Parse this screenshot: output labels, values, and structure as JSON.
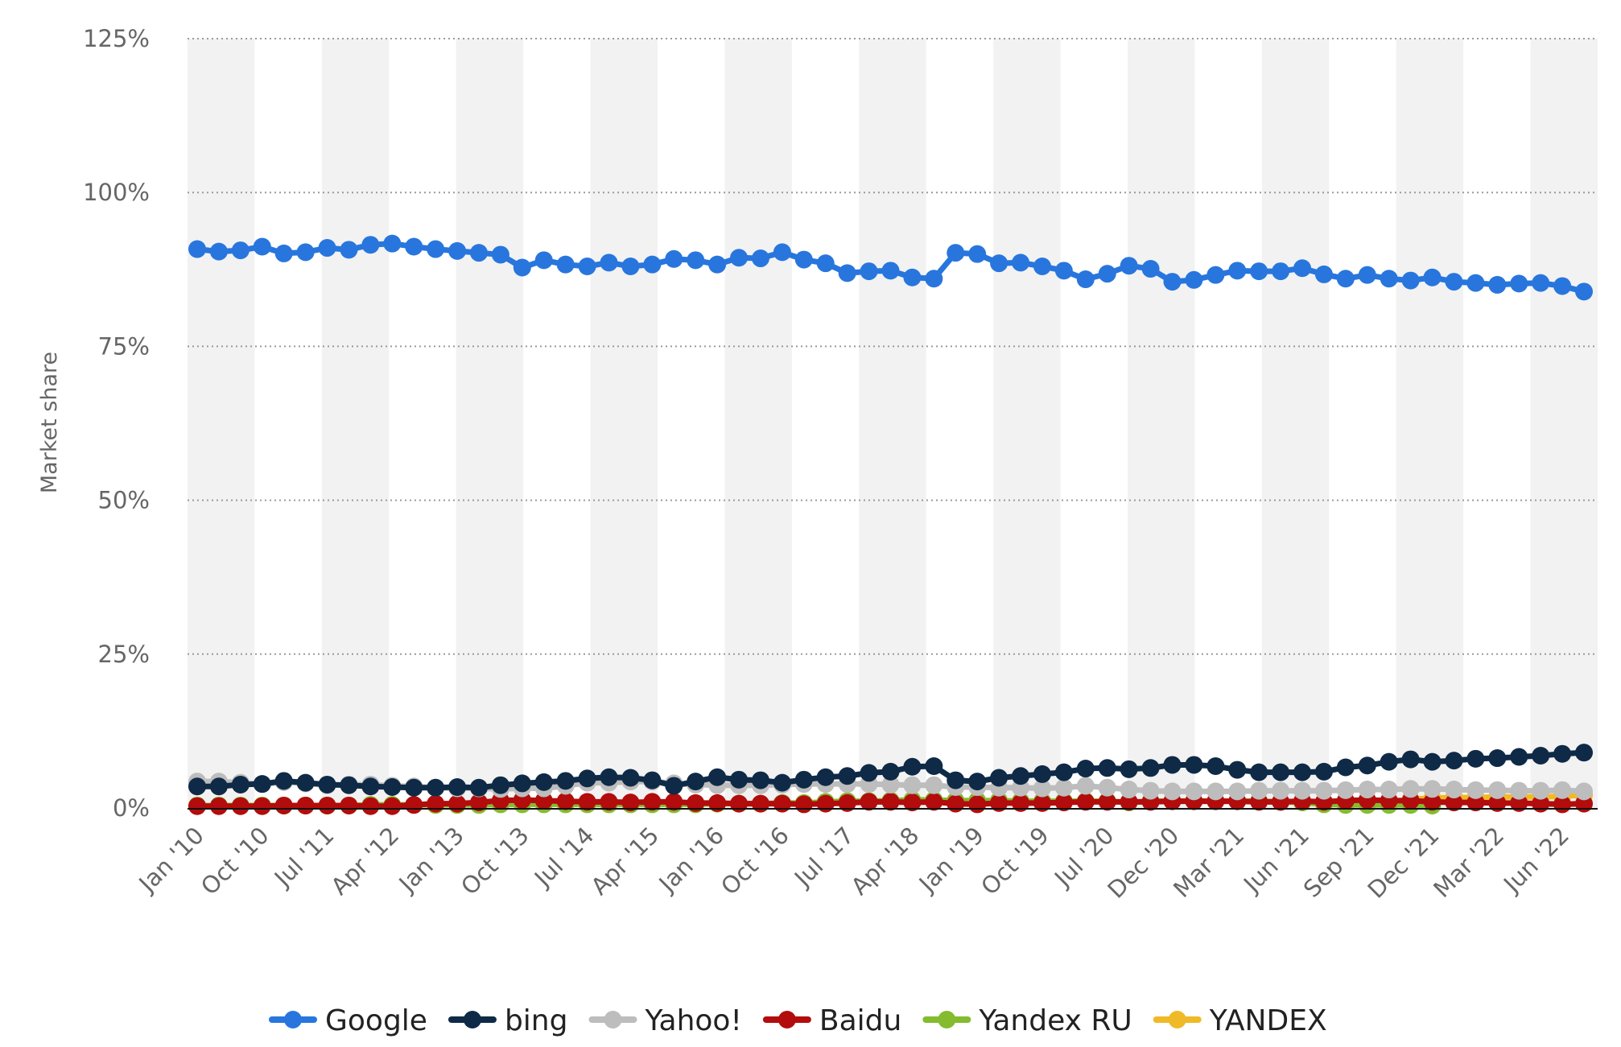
{
  "chart_data": {
    "type": "line",
    "ylabel": "Market share",
    "xlabel": "",
    "ylim": [
      0,
      125
    ],
    "yticks": [
      0,
      25,
      50,
      75,
      100,
      125
    ],
    "ytick_labels": [
      "0%",
      "25%",
      "50%",
      "75%",
      "100%",
      "125%"
    ],
    "grid": "horizontal dotted",
    "legend_position": "bottom",
    "band_count": 21,
    "xtick_labels": [
      "Jan '10",
      "Oct '10",
      "Jul '11",
      "Apr '12",
      "Jan '13",
      "Oct '13",
      "Jul '14",
      "Apr '15",
      "Jan '16",
      "Oct '16",
      "Jul '17",
      "Apr '18",
      "Jan '19",
      "Oct '19",
      "Jul '20",
      "Dec '20",
      "Mar '21",
      "Jun '21",
      "Sep '21",
      "Dec '21",
      "Mar '22",
      "Jun '22"
    ],
    "xtick_index": [
      0,
      3,
      6,
      9,
      12,
      15,
      18,
      21,
      24,
      27,
      30,
      33,
      36,
      39,
      42,
      45,
      48,
      51,
      54,
      57,
      60,
      63
    ],
    "x_count": 65,
    "series": [
      {
        "name": "Google",
        "color": "#2876dd",
        "values": [
          90.8,
          90.4,
          90.6,
          91.2,
          90.1,
          90.3,
          91.0,
          90.7,
          91.5,
          91.7,
          91.2,
          90.8,
          90.5,
          90.2,
          89.9,
          87.8,
          89.0,
          88.3,
          88.0,
          88.6,
          88.0,
          88.3,
          89.2,
          89.0,
          88.3,
          89.4,
          89.3,
          90.3,
          89.1,
          88.5,
          86.9,
          87.2,
          87.3,
          86.2,
          86.0,
          90.2,
          90.0,
          88.5,
          88.6,
          88.0,
          87.3,
          85.9,
          86.8,
          88.1,
          87.6,
          85.5,
          85.8,
          86.6,
          87.3,
          87.2,
          87.2,
          87.7,
          86.7,
          86.0,
          86.6,
          86.0,
          85.7,
          86.2,
          85.5,
          85.3,
          85.0,
          85.2,
          85.3,
          84.8,
          83.9
        ]
      },
      {
        "name": "bing",
        "color": "#0f2a47",
        "values": [
          3.5,
          3.5,
          3.8,
          3.9,
          4.4,
          4.1,
          3.8,
          3.7,
          3.5,
          3.4,
          3.3,
          3.3,
          3.4,
          3.3,
          3.7,
          4.0,
          4.2,
          4.4,
          4.8,
          5.0,
          4.9,
          4.5,
          3.6,
          4.3,
          5.0,
          4.6,
          4.5,
          4.1,
          4.6,
          5.0,
          5.2,
          5.7,
          5.9,
          6.7,
          6.8,
          4.5,
          4.3,
          4.9,
          5.2,
          5.5,
          5.8,
          6.4,
          6.5,
          6.3,
          6.5,
          7.0,
          7.0,
          6.8,
          6.2,
          5.8,
          5.8,
          5.8,
          5.9,
          6.6,
          6.9,
          7.5,
          7.9,
          7.5,
          7.7,
          8.0,
          8.1,
          8.3,
          8.5,
          8.8,
          9.0
        ]
      },
      {
        "name": "Yahoo!",
        "color": "#bdbdbd",
        "values": [
          4.3,
          4.3,
          4.1,
          3.9,
          4.2,
          4.0,
          3.7,
          3.8,
          3.8,
          3.6,
          3.5,
          3.3,
          3.2,
          3.2,
          3.1,
          3.2,
          3.2,
          3.6,
          4.1,
          4.1,
          4.3,
          4.3,
          4.0,
          3.8,
          3.7,
          3.7,
          3.7,
          3.8,
          3.9,
          3.9,
          3.9,
          3.9,
          3.8,
          3.7,
          3.7,
          3.4,
          3.4,
          3.3,
          3.3,
          3.2,
          3.3,
          3.6,
          3.3,
          3.0,
          2.8,
          2.7,
          2.7,
          2.7,
          2.7,
          2.8,
          2.8,
          2.8,
          2.8,
          2.9,
          3.0,
          3.0,
          3.1,
          3.1,
          3.0,
          2.9,
          2.9,
          2.8,
          2.8,
          2.9,
          2.7
        ]
      },
      {
        "name": "Baidu",
        "color": "#b30c0c",
        "values": [
          0.3,
          0.3,
          0.3,
          0.3,
          0.4,
          0.4,
          0.4,
          0.4,
          0.3,
          0.3,
          0.5,
          0.7,
          0.7,
          0.9,
          1.2,
          1.3,
          1.2,
          1.1,
          1.0,
          1.0,
          0.9,
          1.0,
          1.0,
          0.8,
          0.8,
          0.7,
          0.7,
          0.7,
          0.6,
          0.7,
          0.8,
          1.0,
          1.0,
          0.9,
          1.0,
          0.7,
          0.6,
          0.8,
          0.8,
          0.8,
          0.9,
          1.0,
          1.0,
          1.0,
          1.0,
          1.1,
          1.1,
          1.1,
          1.1,
          1.0,
          1.0,
          1.1,
          1.0,
          1.2,
          1.3,
          1.2,
          1.2,
          1.0,
          0.9,
          0.9,
          0.8,
          0.8,
          0.7,
          0.6,
          0.7
        ]
      },
      {
        "name": "Yandex RU",
        "color": "#85bb2f",
        "values": [
          0.4,
          0.4,
          0.4,
          0.4,
          0.4,
          0.4,
          0.4,
          0.4,
          0.5,
          0.5,
          0.5,
          0.5,
          0.5,
          0.5,
          0.6,
          0.6,
          0.6,
          0.6,
          0.6,
          0.6,
          0.6,
          0.6,
          0.6,
          0.6,
          0.7,
          0.7,
          0.7,
          0.8,
          0.8,
          1.0,
          1.1,
          1.1,
          1.2,
          1.3,
          1.3,
          1.2,
          1.2,
          1.2,
          1.1,
          1.1,
          1.1,
          1.1,
          1.1,
          0.9,
          1.1,
          1.1,
          1.1,
          1.1,
          1.1,
          1.1,
          1.0,
          0.9,
          0.6,
          0.5,
          0.5,
          0.5,
          0.5,
          0.4
        ]
      },
      {
        "name": "YANDEX",
        "color": "#f0b927",
        "start_index": 56,
        "values": [
          1.4,
          1.6,
          1.7,
          1.7,
          1.8,
          1.8,
          1.8,
          1.9,
          2.1
        ]
      }
    ]
  }
}
